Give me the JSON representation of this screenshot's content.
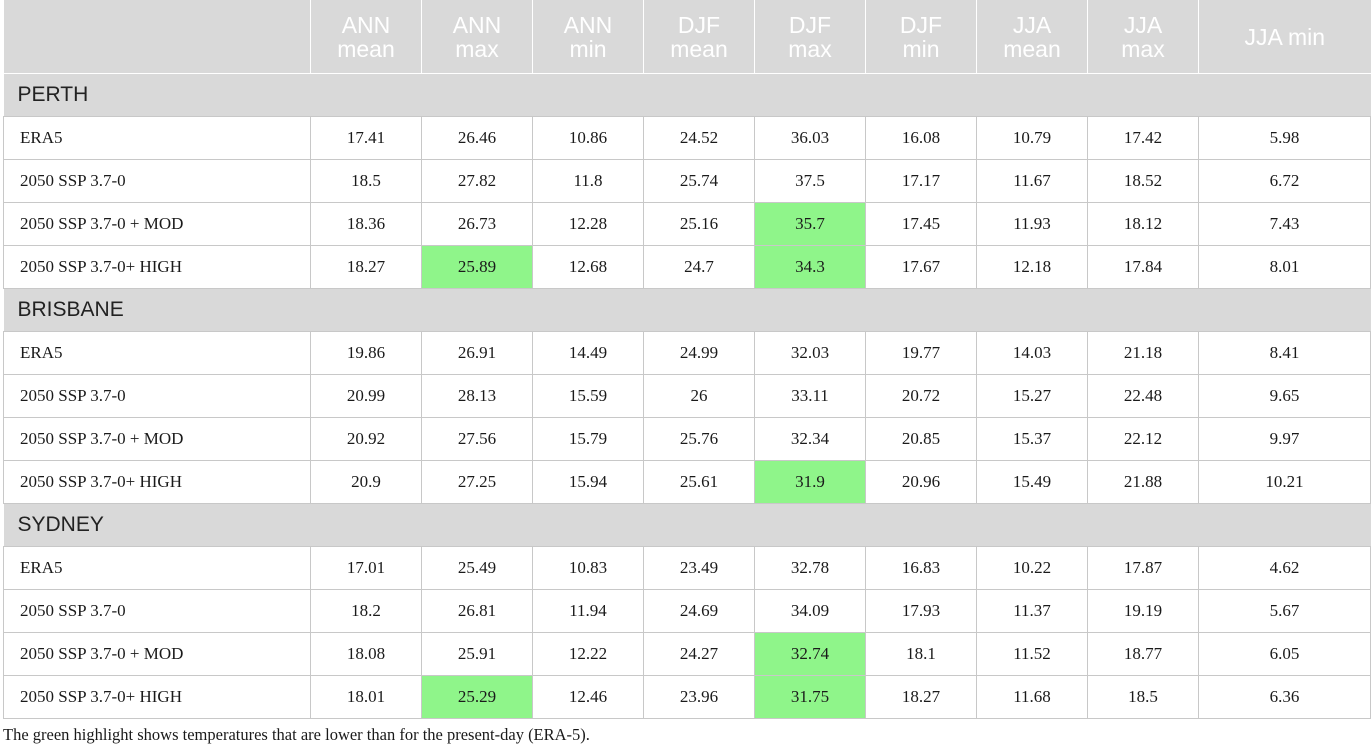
{
  "columns": [
    "",
    "ANN\nmean",
    "ANN\nmax",
    "ANN\nmin",
    "DJF\nmean",
    "DJF\nmax",
    "DJF\nmin",
    "JJA\nmean",
    "JJA\nmax",
    "JJA min"
  ],
  "highlight_color": "#8ff58a",
  "sections": [
    {
      "name": "PERTH",
      "rows": [
        {
          "label": "ERA5",
          "values": [
            "17.41",
            "26.46",
            "10.86",
            "24.52",
            "36.03",
            "16.08",
            "10.79",
            "17.42",
            "5.98"
          ],
          "highlight": []
        },
        {
          "label": "2050 SSP 3.7-0",
          "values": [
            "18.5",
            "27.82",
            "11.8",
            "25.74",
            "37.5",
            "17.17",
            "11.67",
            "18.52",
            "6.72"
          ],
          "highlight": []
        },
        {
          "label": "2050 SSP 3.7-0 + MOD",
          "values": [
            "18.36",
            "26.73",
            "12.28",
            "25.16",
            "35.7",
            "17.45",
            "11.93",
            "18.12",
            "7.43"
          ],
          "highlight": [
            4
          ]
        },
        {
          "label": "2050 SSP 3.7-0+ HIGH",
          "values": [
            "18.27",
            "25.89",
            "12.68",
            "24.7",
            "34.3",
            "17.67",
            "12.18",
            "17.84",
            "8.01"
          ],
          "highlight": [
            1,
            4
          ]
        }
      ]
    },
    {
      "name": "BRISBANE",
      "rows": [
        {
          "label": "ERA5",
          "values": [
            "19.86",
            "26.91",
            "14.49",
            "24.99",
            "32.03",
            "19.77",
            "14.03",
            "21.18",
            "8.41"
          ],
          "highlight": []
        },
        {
          "label": "2050 SSP 3.7-0",
          "values": [
            "20.99",
            "28.13",
            "15.59",
            "26",
            "33.11",
            "20.72",
            "15.27",
            "22.48",
            "9.65"
          ],
          "highlight": []
        },
        {
          "label": "2050 SSP 3.7-0 + MOD",
          "values": [
            "20.92",
            "27.56",
            "15.79",
            "25.76",
            "32.34",
            "20.85",
            "15.37",
            "22.12",
            "9.97"
          ],
          "highlight": []
        },
        {
          "label": "2050 SSP 3.7-0+ HIGH",
          "values": [
            "20.9",
            "27.25",
            "15.94",
            "25.61",
            "31.9",
            "20.96",
            "15.49",
            "21.88",
            "10.21"
          ],
          "highlight": [
            4
          ]
        }
      ]
    },
    {
      "name": "SYDNEY",
      "rows": [
        {
          "label": "ERA5",
          "values": [
            "17.01",
            "25.49",
            "10.83",
            "23.49",
            "32.78",
            "16.83",
            "10.22",
            "17.87",
            "4.62"
          ],
          "highlight": []
        },
        {
          "label": "2050 SSP 3.7-0",
          "values": [
            "18.2",
            "26.81",
            "11.94",
            "24.69",
            "34.09",
            "17.93",
            "11.37",
            "19.19",
            "5.67"
          ],
          "highlight": []
        },
        {
          "label": "2050 SSP 3.7-0 + MOD",
          "values": [
            "18.08",
            "25.91",
            "12.22",
            "24.27",
            "32.74",
            "18.1",
            "11.52",
            "18.77",
            "6.05"
          ],
          "highlight": [
            4
          ]
        },
        {
          "label": "2050 SSP 3.7-0+ HIGH",
          "values": [
            "18.01",
            "25.29",
            "12.46",
            "23.96",
            "31.75",
            "18.27",
            "11.68",
            "18.5",
            "6.36"
          ],
          "highlight": [
            1,
            4
          ]
        }
      ]
    }
  ],
  "footnote": "The green highlight shows temperatures that are lower than for the present-day (ERA-5)."
}
